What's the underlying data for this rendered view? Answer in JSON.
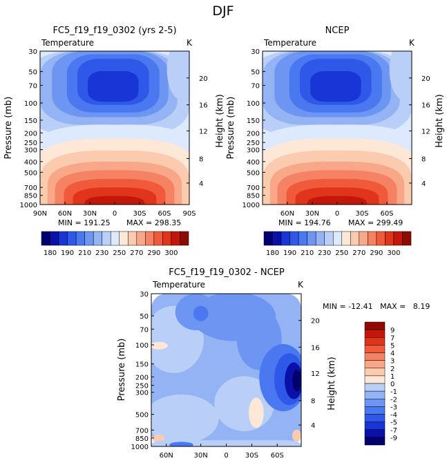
{
  "page_title": "DJF",
  "colors": {
    "temp_levels": [
      "#02006e",
      "#0a10a8",
      "#1835d6",
      "#2d58e8",
      "#4a78f0",
      "#6d96f2",
      "#93b3f5",
      "#b9cff8",
      "#dde9fc",
      "#fde8d8",
      "#fbcbb0",
      "#f8a888",
      "#f58263",
      "#f05a3a",
      "#e0341b",
      "#c2170b",
      "#900a04"
    ],
    "diff_levels": [
      "#02006e",
      "#0a10a8",
      "#1835d6",
      "#2d58e8",
      "#4a78f0",
      "#6d96f2",
      "#93b3f5",
      "#b9cff8",
      "#dde9fc",
      "#fde8d8",
      "#fbcbb0",
      "#f8a888",
      "#f58263",
      "#f05a3a",
      "#e0341b",
      "#c2170b",
      "#900a04"
    ]
  },
  "chart_data": [
    {
      "type": "heatmap",
      "title": "FC5_f19_f19_0302 (yrs 2-5)",
      "variable": "Temperature",
      "units": "K",
      "ylabel": "Pressure (mb)",
      "ylabel_right": "Height (km)",
      "y_ticks": [
        "30",
        "50",
        "70",
        "100",
        "150",
        "200",
        "250",
        "300",
        "400",
        "500",
        "700",
        "850",
        "1000"
      ],
      "y_right_ticks": [
        "20",
        "16",
        "12",
        "8",
        "4"
      ],
      "x_ticks": [
        "90N",
        "60N",
        "30N",
        "0",
        "30S",
        "60S",
        "90S"
      ],
      "min_label": "MIN = 191.25",
      "max_label": "MAX = 298.35",
      "colorbar_ticks": [
        "180",
        "190",
        "210",
        "230",
        "250",
        "270",
        "290",
        "300"
      ]
    },
    {
      "type": "heatmap",
      "title": "NCEP",
      "variable": "Temperature",
      "units": "K",
      "ylabel": "Pressure (mb)",
      "ylabel_right": "Height (km)",
      "y_ticks": [
        "30",
        "50",
        "70",
        "100",
        "150",
        "200",
        "250",
        "300",
        "400",
        "500",
        "700",
        "850",
        "1000"
      ],
      "y_right_ticks": [
        "20",
        "16",
        "12",
        "8",
        "4"
      ],
      "x_ticks": [
        "60N",
        "30N",
        "0",
        "30S",
        "60S"
      ],
      "min_label": "MIN = 194.76",
      "max_label": "MAX = 299.49",
      "colorbar_ticks": [
        "180",
        "190",
        "210",
        "230",
        "250",
        "270",
        "290",
        "300"
      ]
    },
    {
      "type": "heatmap",
      "title": "FC5_f19_f19_0302 - NCEP",
      "variable": "Temperature",
      "units": "K",
      "ylabel": "Pressure (mb)",
      "ylabel_right": "Height (km)",
      "y_ticks": [
        "30",
        "50",
        "70",
        "100",
        "150",
        "200",
        "250",
        "300",
        "500",
        "700",
        "850",
        "1000"
      ],
      "y_right_ticks": [
        "20",
        "16",
        "12",
        "8",
        "4"
      ],
      "x_ticks": [
        "60N",
        "30N",
        "0",
        "30S",
        "60S"
      ],
      "minmax_label": "MIN = -12.41   MAX =   8.19",
      "colorbar_ticks": [
        "9",
        "7",
        "5",
        "4",
        "3",
        "2",
        "1",
        "0",
        "-1",
        "-2",
        "-3",
        "-4",
        "-5",
        "-7",
        "-9"
      ]
    }
  ]
}
